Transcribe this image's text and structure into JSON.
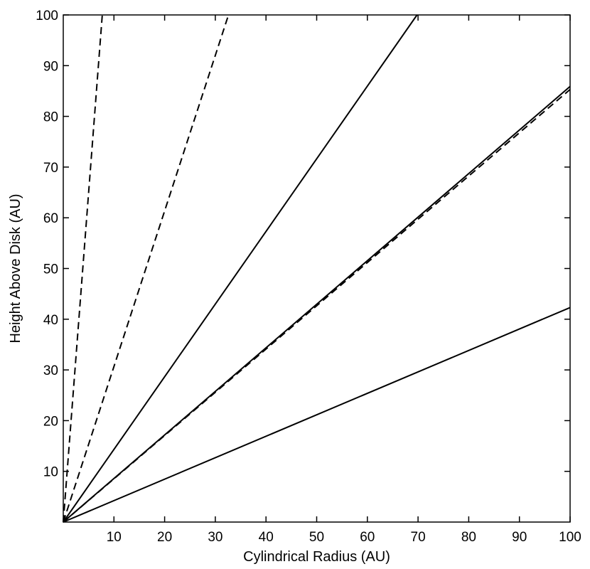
{
  "chart_data": {
    "type": "line",
    "xlabel": "Cylindrical Radius (AU)",
    "ylabel": "Height Above Disk (AU)",
    "xlim": [
      0,
      100
    ],
    "ylim": [
      0,
      100
    ],
    "x_ticks": [
      10,
      20,
      30,
      40,
      50,
      60,
      70,
      80,
      90,
      100
    ],
    "y_ticks": [
      10,
      20,
      30,
      40,
      50,
      60,
      70,
      80,
      90,
      100
    ],
    "grid": false,
    "legend": "none",
    "line_color": "#000000",
    "series": [
      {
        "style": "solid",
        "x": [
          0,
          69.8
        ],
        "y": [
          0,
          100
        ]
      },
      {
        "style": "solid",
        "x": [
          0,
          100
        ],
        "y": [
          0,
          85.9
        ]
      },
      {
        "style": "solid",
        "x": [
          0,
          100
        ],
        "y": [
          0,
          42.3
        ]
      },
      {
        "style": "dashed",
        "x": [
          0,
          7.7
        ],
        "y": [
          0,
          100
        ]
      },
      {
        "style": "dashed",
        "x": [
          0,
          32.6
        ],
        "y": [
          0,
          100
        ]
      },
      {
        "style": "dashed",
        "x": [
          0,
          100
        ],
        "y": [
          0,
          85.3
        ]
      }
    ]
  }
}
